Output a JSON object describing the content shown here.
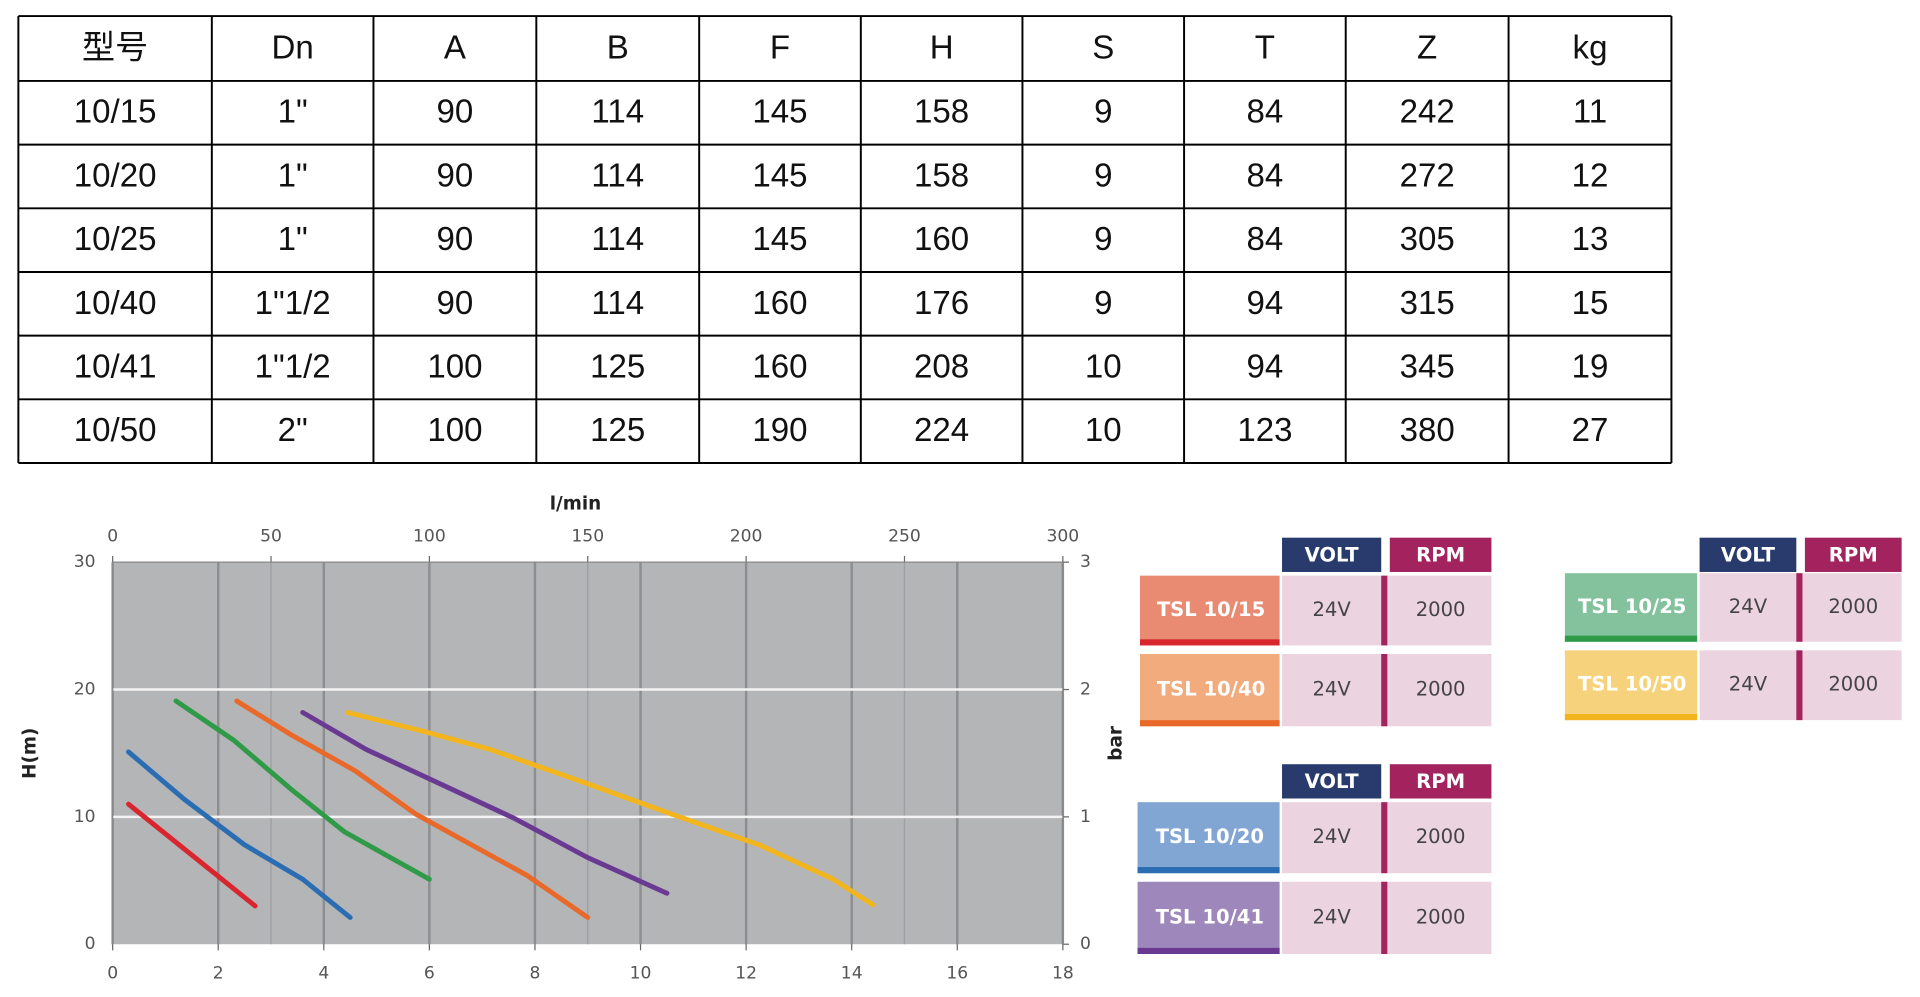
{
  "table": {
    "header": [
      "型号",
      "Dn",
      "A",
      "B",
      "F",
      "H",
      "S",
      "T",
      "Z",
      "kg"
    ],
    "rows": [
      [
        "10/15",
        "1\"",
        90,
        114,
        145,
        158,
        9,
        84,
        242,
        11
      ],
      [
        "10/20",
        "1\"",
        90,
        114,
        145,
        158,
        9,
        84,
        272,
        12
      ],
      [
        "10/25",
        "1\"",
        90,
        114,
        145,
        160,
        9,
        84,
        305,
        13
      ],
      [
        "10/40",
        "1\"1/2",
        90,
        114,
        160,
        176,
        9,
        94,
        315,
        15
      ],
      [
        "10/41",
        "1\"1/2",
        100,
        125,
        160,
        208,
        10,
        94,
        345,
        19
      ],
      [
        "10/50",
        "2\"",
        100,
        125,
        190,
        224,
        10,
        123,
        380,
        27
      ]
    ]
  },
  "chart_data": {
    "type": "line",
    "xlabel_top": "l/min",
    "ylabel": "H(m)",
    "y2label": "bar",
    "xlim": [
      0,
      18
    ],
    "xticks": [
      0,
      2,
      4,
      6,
      8,
      10,
      12,
      14,
      16,
      18
    ],
    "x2lim": [
      0,
      300
    ],
    "x2ticks": [
      0,
      50,
      100,
      150,
      200,
      250,
      300
    ],
    "ylim": [
      0,
      30
    ],
    "yticks": [
      0,
      10,
      20,
      30
    ],
    "y2lim": [
      0,
      3
    ],
    "y2ticks": [
      0,
      1,
      2,
      3
    ],
    "grid": true,
    "spec_headers": [
      "VOLT",
      "RPM"
    ],
    "series": [
      {
        "name": "TSL 10/15",
        "color": "#d9262e",
        "label_color": "#e98a72",
        "volt": "24V",
        "rpm": "2000",
        "x": [
          0.3,
          1.5,
          2.7
        ],
        "values": [
          11,
          7,
          3
        ]
      },
      {
        "name": "TSL 10/20",
        "color": "#2a6db3",
        "label_color": "#82a6d3",
        "volt": "24V",
        "rpm": "2000",
        "x": [
          0.3,
          1.35,
          2.5,
          3.6,
          4.5
        ],
        "values": [
          15.1,
          11.4,
          7.8,
          5.1,
          2.1
        ]
      },
      {
        "name": "TSL 10/25",
        "color": "#2f9a48",
        "label_color": "#83c29d",
        "volt": "24V",
        "rpm": "2000",
        "x": [
          1.2,
          2.3,
          3.4,
          4.4,
          6.0
        ],
        "values": [
          19.1,
          16.0,
          12.1,
          8.8,
          5.1
        ]
      },
      {
        "name": "TSL 10/40",
        "color": "#e8692a",
        "label_color": "#f1ab7d",
        "volt": "24V",
        "rpm": "2000",
        "x": [
          2.35,
          3.4,
          4.6,
          5.75,
          7.85,
          9.0
        ],
        "values": [
          19.1,
          16.4,
          13.6,
          10.2,
          5.4,
          2.1
        ]
      },
      {
        "name": "TSL 10/41",
        "color": "#6a3a93",
        "label_color": "#9d87bb",
        "volt": "24V",
        "rpm": "2000",
        "x": [
          3.6,
          4.8,
          6.2,
          7.6,
          9.0,
          10.5
        ],
        "values": [
          18.2,
          15.3,
          12.6,
          9.9,
          6.8,
          4.0
        ]
      },
      {
        "name": "TSL 10/50",
        "color": "#f2b51e",
        "label_color": "#f6d27d",
        "volt": "24V",
        "rpm": "2000",
        "x": [
          4.45,
          5.9,
          7.15,
          9.0,
          10.6,
          12.25,
          13.65,
          14.4
        ],
        "values": [
          18.2,
          16.7,
          15.3,
          12.6,
          10.2,
          7.8,
          5.1,
          3.1
        ]
      }
    ]
  }
}
